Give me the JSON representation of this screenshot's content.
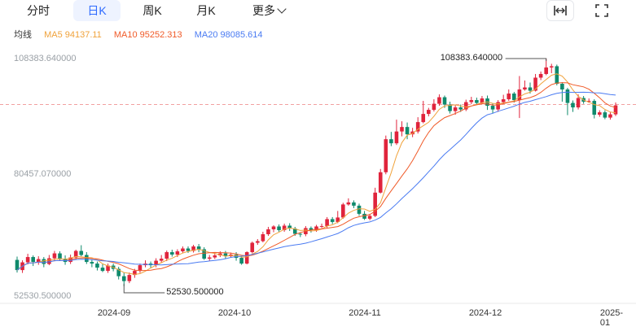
{
  "tabs": [
    {
      "label": "分时",
      "active": false
    },
    {
      "label": "日K",
      "active": true
    },
    {
      "label": "周K",
      "active": false
    },
    {
      "label": "月K",
      "active": false
    },
    {
      "label": "更多",
      "active": false
    }
  ],
  "toolbar_icons": [
    "expand-horizontal-icon",
    "fullscreen-icon"
  ],
  "legend": {
    "title": "均线",
    "ma5": "MA5 94137.11",
    "ma10": "MA10 95252.313",
    "ma20": "MA20 98085.614",
    "colors": {
      "ma5": "#f0a23b",
      "ma10": "#f05a28",
      "ma20": "#4a7bf2"
    }
  },
  "y_labels": [
    "108383.640000",
    "80457.070000",
    "52530.500000"
  ],
  "x_labels": [
    "2024-09",
    "2024-10",
    "2024-11",
    "2024-12",
    "2025-01"
  ],
  "high_callout": "108383.640000",
  "low_callout": "52530.500000",
  "colors": {
    "up": "#e0243c",
    "down": "#0f8a6c",
    "ref_line": "#f2a0a0"
  },
  "chart_data": {
    "type": "candlestick",
    "ylim": [
      52530.5,
      108383.64
    ],
    "y_ticks": [
      108383.64,
      80457.07,
      52530.5
    ],
    "x_ticks": [
      "2024-09",
      "2024-10",
      "2024-11",
      "2024-12",
      "2025-01"
    ],
    "max_marker": 108383.64,
    "min_marker": 52530.5,
    "ref_price": 97120,
    "ma_legend": {
      "MA5": 94137.11,
      "MA10": 95252.313,
      "MA20": 98085.614
    },
    "candles": [
      [
        59000,
        56500,
        59800,
        55900
      ],
      [
        56500,
        58400,
        58900,
        55800
      ],
      [
        58400,
        59700,
        60500,
        57900
      ],
      [
        59700,
        58500,
        60100,
        57500
      ],
      [
        58500,
        59200,
        59900,
        57800
      ],
      [
        59200,
        58000,
        59700,
        57200
      ],
      [
        58000,
        59400,
        60200,
        57700
      ],
      [
        59400,
        60600,
        61200,
        58800
      ],
      [
        60600,
        59300,
        61100,
        58900
      ],
      [
        59300,
        58500,
        60100,
        57800
      ],
      [
        58500,
        59600,
        60300,
        58000
      ],
      [
        59600,
        61200,
        61500,
        59100
      ],
      [
        61200,
        60200,
        62600,
        59900
      ],
      [
        60200,
        58500,
        60900,
        58000
      ],
      [
        58500,
        58100,
        59000,
        57200
      ],
      [
        58100,
        57100,
        58600,
        56400
      ],
      [
        57100,
        56300,
        58000,
        56000
      ],
      [
        56300,
        57600,
        58100,
        55800
      ],
      [
        57600,
        56800,
        58100,
        56200
      ],
      [
        56800,
        55000,
        57300,
        54200
      ],
      [
        55000,
        53800,
        55900,
        52530.5
      ],
      [
        53800,
        55300,
        55900,
        53300
      ],
      [
        55300,
        56300,
        56800,
        54600
      ],
      [
        56300,
        57700,
        58100,
        55800
      ],
      [
        57700,
        58100,
        58900,
        57200
      ],
      [
        58100,
        57700,
        58600,
        57000
      ],
      [
        57700,
        58800,
        59400,
        57200
      ],
      [
        58800,
        59300,
        60200,
        58300
      ],
      [
        59300,
        60900,
        61300,
        58700
      ],
      [
        60900,
        60300,
        61500,
        59800
      ],
      [
        60300,
        61100,
        61600,
        59700
      ],
      [
        61100,
        61800,
        62300,
        60700
      ],
      [
        61800,
        61200,
        62300,
        60700
      ],
      [
        61200,
        62300,
        62700,
        60800
      ],
      [
        62300,
        61600,
        62900,
        60900
      ],
      [
        61600,
        59300,
        62100,
        59000
      ],
      [
        59300,
        59600,
        60200,
        58800
      ],
      [
        59600,
        60100,
        60700,
        59200
      ],
      [
        60100,
        60600,
        61100,
        59700
      ],
      [
        60600,
        59900,
        61200,
        59200
      ],
      [
        59900,
        60300,
        60800,
        59500
      ],
      [
        60300,
        59500,
        60900,
        58800
      ],
      [
        59500,
        58100,
        60000,
        57800
      ],
      [
        58100,
        60900,
        61100,
        57900
      ],
      [
        60900,
        63200,
        63500,
        60600
      ],
      [
        63200,
        63600,
        64100,
        62700
      ],
      [
        63600,
        65300,
        65900,
        63300
      ],
      [
        65300,
        66500,
        67100,
        64900
      ],
      [
        66500,
        67200,
        67500,
        65800
      ],
      [
        67200,
        66300,
        67700,
        65900
      ],
      [
        66300,
        67400,
        67900,
        65900
      ],
      [
        67400,
        66700,
        68000,
        66100
      ],
      [
        66700,
        65400,
        67100,
        64900
      ],
      [
        65400,
        65300,
        65800,
        64600
      ],
      [
        65300,
        66800,
        67300,
        64800
      ],
      [
        66800,
        66300,
        67200,
        65700
      ],
      [
        66300,
        67200,
        67600,
        65900
      ],
      [
        67200,
        67300,
        67900,
        66800
      ],
      [
        67300,
        69000,
        69500,
        66900
      ],
      [
        69000,
        68300,
        69500,
        67800
      ],
      [
        68300,
        69400,
        71000,
        68000
      ],
      [
        69400,
        72600,
        73000,
        69100
      ],
      [
        72600,
        73100,
        74100,
        72300
      ],
      [
        73100,
        72300,
        73600,
        71700
      ],
      [
        72300,
        70300,
        72800,
        69800
      ],
      [
        70300,
        69100,
        71000,
        68800
      ],
      [
        69100,
        69800,
        70300,
        68700
      ],
      [
        69800,
        75500,
        76700,
        69500
      ],
      [
        75500,
        80500,
        81300,
        75300
      ],
      [
        80500,
        88600,
        89500,
        80000
      ],
      [
        88600,
        87600,
        90400,
        86900
      ],
      [
        87600,
        90500,
        93400,
        87200
      ],
      [
        90500,
        91600,
        93000,
        89300
      ],
      [
        91600,
        89800,
        92700,
        88600
      ],
      [
        89800,
        90500,
        91400,
        89100
      ],
      [
        90500,
        92800,
        94000,
        90000
      ],
      [
        92800,
        94800,
        98000,
        92500
      ],
      [
        94800,
        95800,
        96300,
        94200
      ],
      [
        95800,
        97300,
        98400,
        95400
      ],
      [
        97300,
        98900,
        99600,
        96800
      ],
      [
        98900,
        97100,
        99300,
        96300
      ],
      [
        97100,
        95500,
        97800,
        94900
      ],
      [
        95500,
        96400,
        97000,
        94600
      ],
      [
        96400,
        95900,
        97100,
        95300
      ],
      [
        95900,
        97700,
        98300,
        95500
      ],
      [
        97700,
        98200,
        99000,
        97200
      ],
      [
        98200,
        97500,
        98800,
        97000
      ],
      [
        97500,
        98600,
        99200,
        97200
      ],
      [
        98600,
        96800,
        99300,
        95800
      ],
      [
        96800,
        95900,
        97400,
        94900
      ],
      [
        95900,
        97700,
        98200,
        95300
      ],
      [
        97700,
        98400,
        99500,
        97200
      ],
      [
        98400,
        99800,
        100800,
        98000
      ],
      [
        99800,
        98200,
        100200,
        97600
      ],
      [
        98200,
        100800,
        104100,
        93800
      ],
      [
        100800,
        101300,
        103000,
        100500
      ],
      [
        101300,
        100500,
        102500,
        99800
      ],
      [
        100500,
        103700,
        104600,
        100300
      ],
      [
        103700,
        104600,
        105200,
        103100
      ],
      [
        104600,
        106200,
        108383.64,
        104300
      ],
      [
        106200,
        106500,
        107100,
        104800
      ],
      [
        106500,
        102200,
        106900,
        101800
      ],
      [
        102200,
        100800,
        102600,
        97800
      ],
      [
        100800,
        97500,
        101200,
        94500
      ],
      [
        97500,
        96400,
        98100,
        95300
      ],
      [
        96400,
        98700,
        99600,
        95900
      ],
      [
        98700,
        97800,
        99200,
        97300
      ],
      [
        97800,
        98000,
        98600,
        97500
      ],
      [
        98000,
        94600,
        98400,
        93700
      ],
      [
        94600,
        95200,
        95700,
        94100
      ],
      [
        95200,
        93900,
        95700,
        93500
      ],
      [
        93900,
        94700,
        95200,
        93400
      ],
      [
        94700,
        96900,
        97600,
        94300
      ]
    ]
  }
}
